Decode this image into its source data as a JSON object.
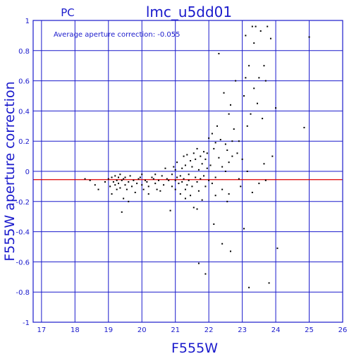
{
  "chart_data": {
    "type": "scatter",
    "corner_label": "PC",
    "title": "lmc_u5dd01",
    "xlabel": "F555W",
    "ylabel": "F555W aperture correction",
    "annotation": "Average aperture correction: -0.055",
    "xlim": [
      16.75,
      26
    ],
    "ylim": [
      -1,
      1
    ],
    "xticks": [
      17,
      18,
      19,
      20,
      21,
      22,
      23,
      24,
      25,
      26
    ],
    "yticks": [
      -1,
      -0.8,
      -0.6,
      -0.4,
      -0.2,
      0,
      0.2,
      0.4,
      0.6,
      0.8,
      1
    ],
    "ytick_labels": [
      "-1",
      "-0.8",
      "-0.6",
      "-0.4",
      "-0.2",
      "0",
      "0.2",
      "0.4",
      "0.6",
      "0.8",
      "1"
    ],
    "grid": true,
    "average_line": -0.055,
    "colors": {
      "axes": "#1a1acc",
      "grid": "#1a1acc",
      "average_line": "#dd0000",
      "points": "#000000"
    },
    "points": [
      [
        18.3,
        -0.05
      ],
      [
        18.45,
        -0.06
      ],
      [
        18.6,
        -0.09
      ],
      [
        18.7,
        -0.12
      ],
      [
        18.9,
        -0.07
      ],
      [
        19.0,
        -0.05
      ],
      [
        19.05,
        -0.1
      ],
      [
        19.1,
        -0.04
      ],
      [
        19.1,
        -0.15
      ],
      [
        19.15,
        -0.07
      ],
      [
        19.2,
        -0.03
      ],
      [
        19.2,
        -0.09
      ],
      [
        19.25,
        -0.12
      ],
      [
        19.25,
        -0.06
      ],
      [
        19.3,
        -0.04
      ],
      [
        19.3,
        -0.08
      ],
      [
        19.35,
        -0.02
      ],
      [
        19.35,
        -0.11
      ],
      [
        19.4,
        -0.06
      ],
      [
        19.4,
        -0.27
      ],
      [
        19.45,
        -0.05
      ],
      [
        19.45,
        -0.18
      ],
      [
        19.5,
        -0.09
      ],
      [
        19.5,
        -0.04
      ],
      [
        19.55,
        -0.12
      ],
      [
        19.6,
        -0.07
      ],
      [
        19.65,
        -0.03
      ],
      [
        19.7,
        -0.1
      ],
      [
        19.75,
        -0.06
      ],
      [
        19.8,
        -0.14
      ],
      [
        19.85,
        -0.08
      ],
      [
        19.9,
        -0.05
      ],
      [
        19.95,
        -0.04
      ],
      [
        20.0,
        -0.09
      ],
      [
        20.0,
        -0.02
      ],
      [
        20.05,
        -0.12
      ],
      [
        20.1,
        -0.06
      ],
      [
        20.15,
        -0.07
      ],
      [
        20.2,
        -0.1
      ],
      [
        20.3,
        -0.04
      ],
      [
        20.35,
        -0.05
      ],
      [
        20.4,
        -0.08
      ],
      [
        20.45,
        -0.12
      ],
      [
        20.5,
        -0.06
      ],
      [
        20.55,
        -0.13
      ],
      [
        20.6,
        -0.03
      ],
      [
        20.65,
        -0.09
      ],
      [
        20.7,
        0.02
      ],
      [
        20.75,
        -0.05
      ],
      [
        20.8,
        -0.06
      ],
      [
        20.85,
        -0.26
      ],
      [
        20.9,
        -0.1
      ],
      [
        20.9,
        -0.02
      ],
      [
        20.95,
        0.03
      ],
      [
        21.0,
        -0.06
      ],
      [
        21.0,
        -0.12
      ],
      [
        21.05,
        -0.04
      ],
      [
        21.05,
        0.06
      ],
      [
        21.1,
        -0.08
      ],
      [
        21.15,
        -0.03
      ],
      [
        21.15,
        -0.15
      ],
      [
        21.2,
        0.02
      ],
      [
        21.2,
        -0.07
      ],
      [
        21.25,
        0.1
      ],
      [
        21.25,
        -0.05
      ],
      [
        21.3,
        -0.12
      ],
      [
        21.3,
        0.04
      ],
      [
        21.35,
        -0.09
      ],
      [
        21.35,
        0.11
      ],
      [
        21.4,
        -0.02
      ],
      [
        21.4,
        -0.06
      ],
      [
        21.45,
        0.07
      ],
      [
        21.45,
        -0.16
      ],
      [
        21.5,
        0.03
      ],
      [
        21.5,
        -0.1
      ],
      [
        21.55,
        -0.24
      ],
      [
        21.55,
        0.12
      ],
      [
        21.6,
        -0.04
      ],
      [
        21.6,
        0.08
      ],
      [
        21.65,
        -0.07
      ],
      [
        21.65,
        0.15
      ],
      [
        21.7,
        0.01
      ],
      [
        21.7,
        -0.13
      ],
      [
        21.75,
        0.1
      ],
      [
        21.75,
        -0.05
      ],
      [
        21.8,
        0.05
      ],
      [
        21.8,
        -0.19
      ],
      [
        21.85,
        0.13
      ],
      [
        21.85,
        -0.03
      ],
      [
        21.9,
        0.08
      ],
      [
        21.9,
        -0.1
      ],
      [
        21.95,
        0.02
      ],
      [
        21.95,
        0.12
      ],
      [
        22.0,
        -0.06
      ],
      [
        22.0,
        0.22
      ],
      [
        22.05,
        0.04
      ],
      [
        22.1,
        0.25
      ],
      [
        22.1,
        -0.08
      ],
      [
        22.15,
        0.15
      ],
      [
        22.2,
        0.19
      ],
      [
        22.2,
        -0.04
      ],
      [
        22.25,
        0.3
      ],
      [
        22.3,
        0.09
      ],
      [
        22.3,
        0.78
      ],
      [
        22.35,
        0.21
      ],
      [
        22.4,
        0.03
      ],
      [
        22.4,
        -0.12
      ],
      [
        22.45,
        0.52
      ],
      [
        22.5,
        0.18
      ],
      [
        22.55,
        0.14
      ],
      [
        22.55,
        -0.2
      ],
      [
        22.6,
        0.38
      ],
      [
        22.6,
        0.06
      ],
      [
        22.65,
        0.44
      ],
      [
        22.7,
        0.2
      ],
      [
        22.7,
        0.1
      ],
      [
        22.75,
        0.28
      ],
      [
        22.8,
        0.6
      ],
      [
        22.85,
        0.12
      ],
      [
        22.9,
        0.2
      ],
      [
        22.95,
        -0.1
      ],
      [
        23.0,
        0.08
      ],
      [
        23.05,
        0.5
      ],
      [
        23.05,
        -0.38
      ],
      [
        23.1,
        0.62
      ],
      [
        23.1,
        0.9
      ],
      [
        23.15,
        0.3
      ],
      [
        23.15,
        0.0
      ],
      [
        23.2,
        -0.77
      ],
      [
        23.2,
        0.7
      ],
      [
        23.25,
        0.38
      ],
      [
        23.3,
        0.96
      ],
      [
        23.3,
        -0.14
      ],
      [
        23.35,
        0.55
      ],
      [
        23.35,
        0.85
      ],
      [
        23.4,
        0.96
      ],
      [
        23.45,
        0.45
      ],
      [
        23.5,
        0.62
      ],
      [
        23.5,
        -0.08
      ],
      [
        23.55,
        0.93
      ],
      [
        23.6,
        0.35
      ],
      [
        23.65,
        0.7
      ],
      [
        23.65,
        0.05
      ],
      [
        23.7,
        0.6
      ],
      [
        23.75,
        0.96
      ],
      [
        23.8,
        -0.74
      ],
      [
        23.85,
        0.88
      ],
      [
        23.9,
        0.1
      ],
      [
        24.0,
        0.42
      ],
      [
        24.05,
        -0.51
      ],
      [
        24.85,
        0.29
      ],
      [
        25.0,
        0.89
      ],
      [
        21.7,
        -0.61
      ],
      [
        21.9,
        -0.68
      ],
      [
        22.15,
        -0.35
      ],
      [
        22.65,
        -0.53
      ],
      [
        22.4,
        -0.48
      ],
      [
        21.65,
        -0.25
      ],
      [
        22.2,
        -0.16
      ],
      [
        22.9,
        -0.05
      ],
      [
        23.7,
        -0.06
      ],
      [
        21.3,
        -0.18
      ],
      [
        20.4,
        -0.02
      ],
      [
        19.6,
        -0.2
      ],
      [
        20.2,
        -0.15
      ],
      [
        21.0,
        0.01
      ],
      [
        22.5,
        0.0
      ],
      [
        22.6,
        -0.15
      ]
    ]
  }
}
